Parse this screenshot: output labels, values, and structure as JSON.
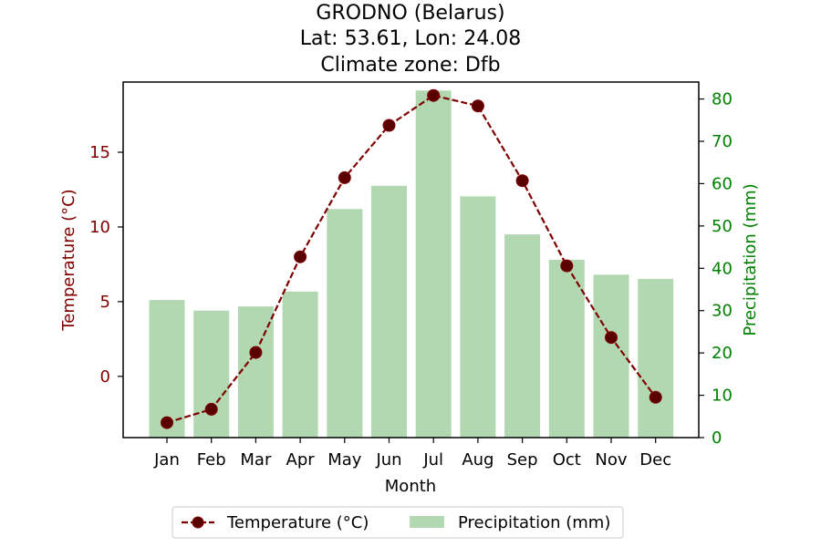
{
  "chart_data": {
    "type": "bar+line",
    "title_lines": [
      "GRODNO (Belarus)",
      "Lat: 53.61, Lon: 24.08",
      "Climate zone: Dfb"
    ],
    "xlabel": "Month",
    "categories": [
      "Jan",
      "Feb",
      "Mar",
      "Apr",
      "May",
      "Jun",
      "Jul",
      "Aug",
      "Sep",
      "Oct",
      "Nov",
      "Dec"
    ],
    "temperature": {
      "name": "Temperature (°C)",
      "axis": "left",
      "ylabel": "Temperature (°C)",
      "ylim": [
        -4.1,
        19.7
      ],
      "yticks": [
        0,
        5,
        10,
        15
      ],
      "values": [
        -3.1,
        -2.2,
        1.6,
        8.0,
        13.3,
        16.8,
        18.8,
        18.1,
        13.1,
        7.4,
        2.6,
        -1.4
      ],
      "color": "#800000",
      "style": "dashed line with circle markers"
    },
    "precipitation": {
      "name": "Precipitation (mm)",
      "axis": "right",
      "ylabel": "Precipitation (mm)",
      "ylim": [
        0,
        84
      ],
      "yticks": [
        0,
        10,
        20,
        30,
        40,
        50,
        60,
        70,
        80
      ],
      "values": [
        32.5,
        30.0,
        31.0,
        34.5,
        54.0,
        59.5,
        82.0,
        57.0,
        48.0,
        42.0,
        38.5,
        37.5
      ],
      "color": "#b2d8b2",
      "axis_color": "#008000"
    },
    "legend": {
      "placement": "bottom-center",
      "entries": [
        "Temperature (°C)",
        "Precipitation (mm)"
      ]
    },
    "grid": false
  }
}
